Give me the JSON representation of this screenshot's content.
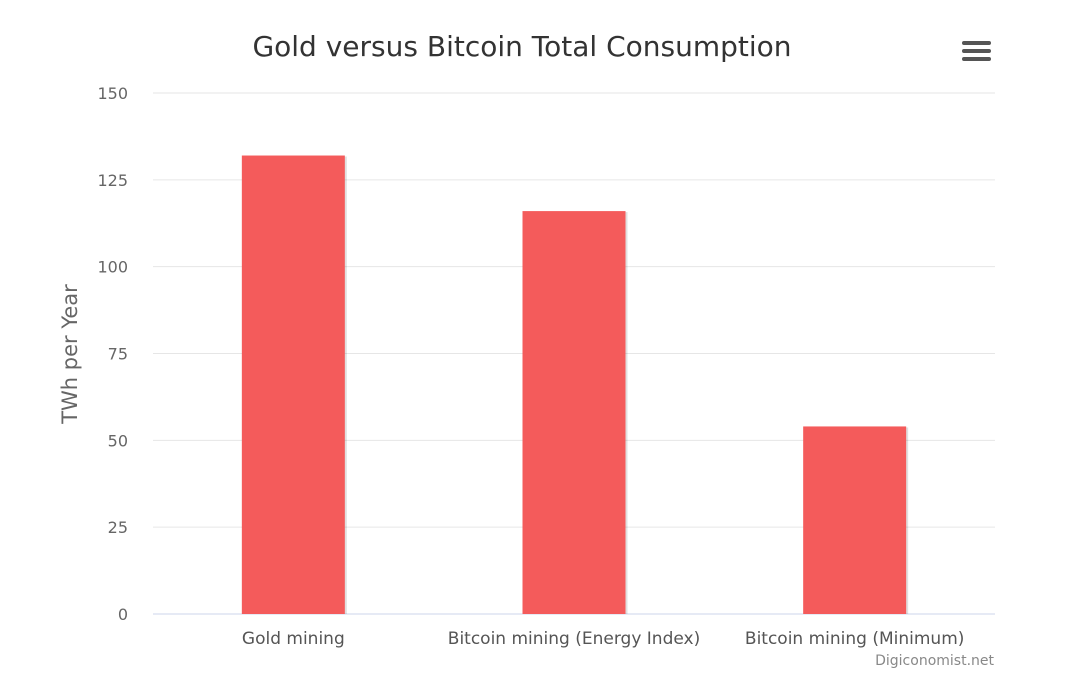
{
  "chart_data": {
    "type": "bar",
    "title": "Gold versus Bitcoin Total Consumption",
    "xlabel": "",
    "ylabel": "TWh per Year",
    "categories": [
      "Gold mining",
      "Bitcoin mining (Energy Index)",
      "Bitcoin mining (Minimum)"
    ],
    "values": [
      132,
      116,
      54
    ],
    "ylim": [
      0,
      150
    ],
    "yticks": [
      0,
      25,
      50,
      75,
      100,
      125,
      150
    ],
    "grid": true,
    "legend": "none",
    "bar_color": "#f45b5b",
    "credit": "Digiconomist.net"
  },
  "menu_icon": "hamburger-menu-icon"
}
